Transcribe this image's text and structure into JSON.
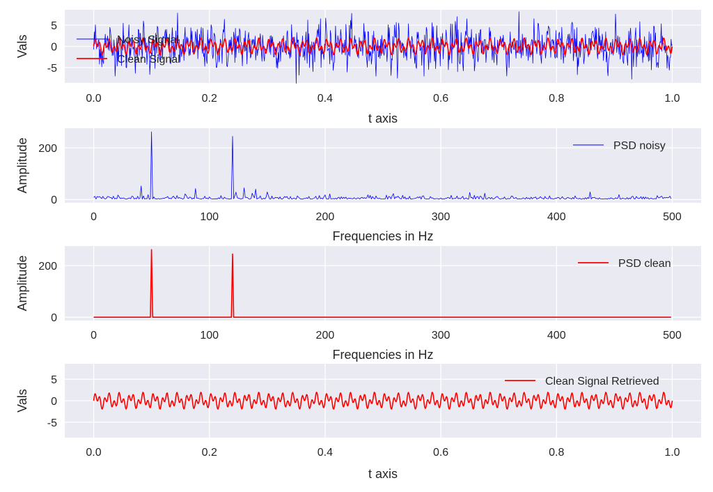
{
  "chart_data": [
    {
      "type": "line",
      "title": "",
      "xlabel": "t axis",
      "ylabel": "Vals",
      "xlim": [
        -0.05,
        1.05
      ],
      "ylim": [
        -8.6,
        8.6
      ],
      "xticks": [
        "0.0",
        "0.2",
        "0.4",
        "0.6",
        "0.8",
        "1.0"
      ],
      "yticks": [
        "-5",
        "0",
        "5"
      ],
      "legend_position": "upper-left",
      "series": [
        {
          "name": "Noisy Signal",
          "color": "#0000ff",
          "formula": "sin(2*pi*50*t) + sin(2*pi*120*t) + noise",
          "noise_std": 2.5,
          "t_start": 0,
          "t_end": 1,
          "dt": 0.001
        },
        {
          "name": "Clean Signal",
          "color": "#ff0000",
          "formula": "sin(2*pi*50*t) + sin(2*pi*120*t)",
          "t_start": 0,
          "t_end": 1,
          "dt": 0.001
        }
      ]
    },
    {
      "type": "line",
      "xlabel": "Frequencies in Hz",
      "ylabel": "Amplitude",
      "xlim": [
        -25,
        525
      ],
      "ylim": [
        -13,
        276
      ],
      "xticks": [
        "0",
        "100",
        "200",
        "300",
        "400",
        "500"
      ],
      "yticks": [
        "0",
        "200"
      ],
      "legend_position": "upper-right",
      "series": [
        {
          "name": "PSD noisy",
          "color": "#0000ff",
          "baseline_mean": 6,
          "peaks": [
            {
              "x": 50,
              "y": 262
            },
            {
              "x": 120,
              "y": 245
            },
            {
              "x": 41,
              "y": 52
            },
            {
              "x": 130,
              "y": 45
            },
            {
              "x": 140,
              "y": 40
            }
          ]
        }
      ]
    },
    {
      "type": "line",
      "xlabel": "Frequencies in Hz",
      "ylabel": "Amplitude",
      "xlim": [
        -25,
        525
      ],
      "ylim": [
        -13,
        276
      ],
      "xticks": [
        "0",
        "100",
        "200",
        "300",
        "400",
        "500"
      ],
      "yticks": [
        "0",
        "200"
      ],
      "legend_position": "upper-right",
      "series": [
        {
          "name": "PSD clean",
          "color": "#ff0000",
          "baseline_mean": 0,
          "peaks": [
            {
              "x": 50,
              "y": 262
            },
            {
              "x": 120,
              "y": 245
            }
          ]
        }
      ]
    },
    {
      "type": "line",
      "xlabel": "t axis",
      "ylabel": "Vals",
      "xlim": [
        -0.05,
        1.05
      ],
      "ylim": [
        -8.6,
        8.6
      ],
      "xticks": [
        "0.0",
        "0.2",
        "0.4",
        "0.6",
        "0.8",
        "1.0"
      ],
      "yticks": [
        "-5",
        "0",
        "5"
      ],
      "legend_position": "upper-right",
      "series": [
        {
          "name": "Clean Signal Retrieved",
          "color": "#ff0000",
          "formula": "sin(2*pi*50*t) + sin(2*pi*120*t)",
          "t_start": 0,
          "t_end": 1,
          "dt": 0.001
        }
      ]
    }
  ]
}
